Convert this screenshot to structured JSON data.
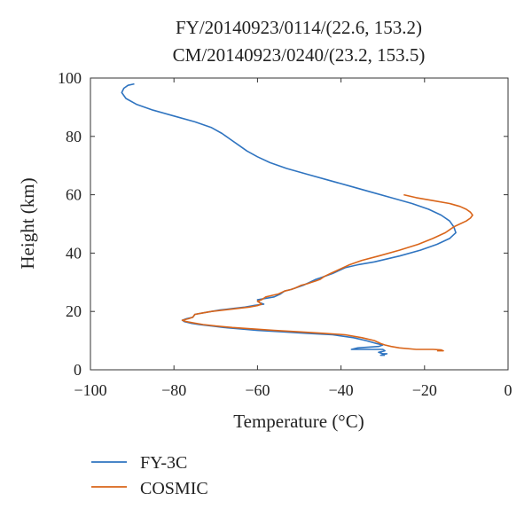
{
  "chart_data": {
    "type": "line",
    "title_lines": [
      "FY/20140923/0114/(22.6, 153.2)",
      "CM/20140923/0240/(23.2, 153.5)"
    ],
    "xlabel": "Temperature (°C)",
    "ylabel": "Height (km)",
    "xlim": [
      -100,
      0
    ],
    "ylim": [
      0,
      100
    ],
    "xticks": [
      -100,
      -80,
      -60,
      -40,
      -20,
      0
    ],
    "yticks": [
      0,
      20,
      40,
      60,
      80,
      100
    ],
    "xtick_labels": [
      "−100",
      "−80",
      "−60",
      "−40",
      "−20",
      "0"
    ],
    "ytick_labels": [
      "0",
      "20",
      "40",
      "60",
      "80",
      "100"
    ],
    "grid": false,
    "legend_position": "bottom-left, below plot",
    "series": [
      {
        "name": "FY-3C",
        "color": "#2f74c0",
        "points": [
          [
            -89.5,
            98
          ],
          [
            -91,
            97.5
          ],
          [
            -92,
            96.5
          ],
          [
            -92.5,
            95
          ],
          [
            -91.5,
            93
          ],
          [
            -89,
            91
          ],
          [
            -85,
            89
          ],
          [
            -80,
            87
          ],
          [
            -75,
            85
          ],
          [
            -71,
            83
          ],
          [
            -68.5,
            81
          ],
          [
            -66.5,
            79
          ],
          [
            -64.5,
            77
          ],
          [
            -62.5,
            75
          ],
          [
            -60,
            73
          ],
          [
            -57,
            71
          ],
          [
            -53,
            69
          ],
          [
            -48,
            67
          ],
          [
            -43,
            65
          ],
          [
            -38,
            63
          ],
          [
            -33,
            61
          ],
          [
            -28,
            59
          ],
          [
            -23,
            57
          ],
          [
            -19,
            55
          ],
          [
            -16,
            53
          ],
          [
            -14,
            51
          ],
          [
            -13,
            49
          ],
          [
            -12.5,
            47
          ],
          [
            -14,
            45
          ],
          [
            -17,
            43
          ],
          [
            -21,
            41
          ],
          [
            -26,
            39
          ],
          [
            -32,
            37
          ],
          [
            -36,
            36
          ],
          [
            -39,
            35
          ],
          [
            -40.5,
            34
          ],
          [
            -42,
            33
          ],
          [
            -44,
            32
          ],
          [
            -45,
            31.5
          ],
          [
            -46,
            31
          ],
          [
            -47.5,
            30
          ],
          [
            -49,
            29
          ],
          [
            -51,
            28
          ],
          [
            -52,
            27.5
          ],
          [
            -53.5,
            27
          ],
          [
            -54.5,
            26
          ],
          [
            -56,
            25
          ],
          [
            -58,
            24.5
          ],
          [
            -60,
            24
          ],
          [
            -59.5,
            23
          ],
          [
            -58.5,
            22.5
          ],
          [
            -61,
            22
          ],
          [
            -63,
            21.5
          ],
          [
            -66,
            21
          ],
          [
            -69,
            20.5
          ],
          [
            -71,
            20
          ],
          [
            -73,
            19.5
          ],
          [
            -75,
            19
          ],
          [
            -75.5,
            18
          ],
          [
            -77,
            17.5
          ],
          [
            -78,
            17
          ],
          [
            -77.5,
            16.5
          ],
          [
            -76,
            16
          ],
          [
            -74,
            15.5
          ],
          [
            -71,
            15
          ],
          [
            -68,
            14.5
          ],
          [
            -64,
            14
          ],
          [
            -60,
            13.5
          ],
          [
            -54,
            13
          ],
          [
            -48,
            12.5
          ],
          [
            -42,
            12
          ],
          [
            -37,
            11
          ],
          [
            -34,
            10
          ],
          [
            -31.5,
            9
          ],
          [
            -30,
            8.5
          ],
          [
            -31,
            8
          ],
          [
            -36,
            7.5
          ],
          [
            -37.5,
            7
          ],
          [
            -34,
            7
          ],
          [
            -30,
            7
          ],
          [
            -29.5,
            6.5
          ],
          [
            -31,
            6
          ],
          [
            -30,
            5.5
          ],
          [
            -29,
            5.5
          ],
          [
            -30.5,
            5
          ],
          [
            -29.5,
            5
          ]
        ]
      },
      {
        "name": "COSMIC",
        "color": "#d9651a",
        "points": [
          [
            -25,
            60
          ],
          [
            -22,
            59
          ],
          [
            -18,
            58
          ],
          [
            -14,
            57
          ],
          [
            -11.5,
            56
          ],
          [
            -10,
            55
          ],
          [
            -9,
            54
          ],
          [
            -8.5,
            53
          ],
          [
            -9,
            52
          ],
          [
            -10,
            51
          ],
          [
            -11.5,
            50
          ],
          [
            -13,
            49
          ],
          [
            -15,
            47
          ],
          [
            -18,
            45
          ],
          [
            -21.5,
            43
          ],
          [
            -26,
            41
          ],
          [
            -31,
            39
          ],
          [
            -35,
            37.5
          ],
          [
            -38,
            36
          ],
          [
            -39.5,
            35
          ],
          [
            -41,
            34
          ],
          [
            -42.5,
            33
          ],
          [
            -44,
            32
          ],
          [
            -45,
            31
          ],
          [
            -46,
            30.5
          ],
          [
            -47,
            30
          ],
          [
            -48,
            29.5
          ],
          [
            -49.5,
            29
          ],
          [
            -51,
            28
          ],
          [
            -52,
            27.5
          ],
          [
            -53.5,
            27
          ],
          [
            -55,
            26
          ],
          [
            -56.5,
            25.5
          ],
          [
            -58,
            25
          ],
          [
            -59,
            24
          ],
          [
            -60,
            23.5
          ],
          [
            -59,
            22.5
          ],
          [
            -60,
            22
          ],
          [
            -62,
            21.5
          ],
          [
            -65,
            21
          ],
          [
            -68,
            20.5
          ],
          [
            -71,
            20
          ],
          [
            -73,
            19.5
          ],
          [
            -75,
            19
          ],
          [
            -75.5,
            18
          ],
          [
            -76.5,
            17.5
          ],
          [
            -78,
            17
          ],
          [
            -77,
            16.5
          ],
          [
            -75,
            16
          ],
          [
            -73,
            15.5
          ],
          [
            -70,
            15
          ],
          [
            -66,
            14.5
          ],
          [
            -61,
            14
          ],
          [
            -56,
            13.5
          ],
          [
            -50,
            13
          ],
          [
            -44,
            12.5
          ],
          [
            -39,
            12
          ],
          [
            -35,
            11
          ],
          [
            -32,
            10
          ],
          [
            -30.5,
            9
          ],
          [
            -29.5,
            8.5
          ],
          [
            -28,
            8
          ],
          [
            -26,
            7.5
          ],
          [
            -22,
            7
          ],
          [
            -18,
            7
          ],
          [
            -16,
            6.8
          ],
          [
            -15.5,
            6.5
          ],
          [
            -17,
            6.5
          ]
        ]
      }
    ]
  }
}
